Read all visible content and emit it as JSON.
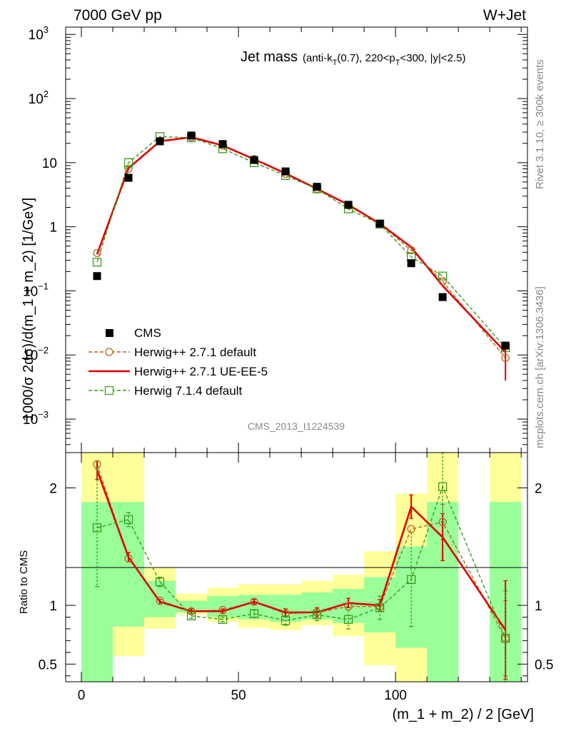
{
  "header": {
    "left": "7000 GeV pp",
    "right": "W+Jet"
  },
  "side_labels": {
    "rivet": "Rivet 3.1.10, ≥ 300k events",
    "mcplots": "mcplots.cern.ch [arXiv:1306.3436]"
  },
  "chart_data": {
    "type": "line",
    "title_main": "Jet mass",
    "title_sub": "(anti-k_T(0.7), 220<p_T<300, |y|<2.5)",
    "watermark": "CMS_2013_I1224539",
    "xlabel": "(m_1 + m_2) / 2 [GeV]",
    "ylabel": "1000/σ 2dσ)/d(m_1 + m_2) [1/GeV]",
    "ratio_ylabel": "Ratio to CMS",
    "xlim": [
      -5,
      142
    ],
    "ylim_log": [
      0.0003,
      1300
    ],
    "ratio_ylim": [
      0.35,
      2.3
    ],
    "x_ticks": [
      0,
      50,
      100
    ],
    "y_ticks": [
      "10^-3",
      "10^-2",
      "10^-1",
      "1",
      "10",
      "10^2",
      "10^3"
    ],
    "ratio_ticks": [
      "0.5",
      "1",
      "2"
    ],
    "bins": [
      [
        0,
        10
      ],
      [
        10,
        20
      ],
      [
        20,
        30
      ],
      [
        30,
        40
      ],
      [
        40,
        50
      ],
      [
        50,
        60
      ],
      [
        60,
        70
      ],
      [
        70,
        80
      ],
      [
        80,
        90
      ],
      [
        90,
        100
      ],
      [
        100,
        110
      ],
      [
        110,
        120
      ],
      [
        130,
        140
      ]
    ],
    "x": [
      5,
      15,
      25,
      35,
      45,
      55,
      65,
      75,
      85,
      95,
      105,
      115,
      135
    ],
    "data": {
      "name": "CMS",
      "values": [
        0.17,
        5.8,
        21.5,
        26.5,
        19.5,
        11.0,
        7.3,
        4.2,
        2.2,
        1.12,
        0.27,
        0.08,
        0.014
      ]
    },
    "band_yellow": [
      [
        0.35,
        2.3
      ],
      [
        0.57,
        2.3
      ],
      [
        0.8,
        1.32
      ],
      [
        0.92,
        1.1
      ],
      [
        0.86,
        1.15
      ],
      [
        0.81,
        1.18
      ],
      [
        0.79,
        1.18
      ],
      [
        0.83,
        1.21
      ],
      [
        0.74,
        1.26
      ],
      [
        0.49,
        1.46
      ],
      [
        0.35,
        1.95
      ],
      [
        0.35,
        2.3
      ],
      [
        0.35,
        2.3
      ]
    ],
    "band_green": [
      [
        0.35,
        1.88
      ],
      [
        0.82,
        1.88
      ],
      [
        0.9,
        1.21
      ],
      [
        0.94,
        1.04
      ],
      [
        0.9,
        1.08
      ],
      [
        0.88,
        1.09
      ],
      [
        0.86,
        1.09
      ],
      [
        0.88,
        1.11
      ],
      [
        0.85,
        1.14
      ],
      [
        0.77,
        1.24
      ],
      [
        0.64,
        1.5
      ],
      [
        0.35,
        1.88
      ],
      [
        0.35,
        1.88
      ]
    ],
    "series": [
      {
        "name": "Herwig++ 2.7.1 default",
        "color": "#b5651d",
        "values": [
          0.39,
          8.0,
          22.0,
          25.0,
          18.5,
          11.3,
          6.7,
          3.9,
          2.15,
          1.11,
          0.43,
          0.14,
          0.009
        ],
        "ratio": [
          2.2,
          1.4,
          1.04,
          0.95,
          0.96,
          1.03,
          0.93,
          0.94,
          0.99,
          0.99,
          1.65,
          1.71,
          0.72
        ],
        "ratio_err": [
          0,
          0,
          0,
          0,
          0,
          0,
          0,
          0,
          0,
          0,
          0,
          0.15,
          0.32
        ]
      },
      {
        "name": "Herwig++ 2.7.1 UE-EE-5",
        "color": "#e00000",
        "values": [
          0.37,
          8.2,
          21.5,
          25.0,
          18.5,
          11.3,
          6.8,
          3.9,
          2.2,
          1.12,
          0.48,
          0.12,
          0.011
        ],
        "ratio": [
          2.15,
          1.41,
          1.03,
          0.95,
          0.95,
          1.03,
          0.94,
          0.94,
          1.02,
          1.0,
          1.84,
          1.58,
          0.79
        ],
        "ratio_err": [
          0.08,
          0.04,
          0.02,
          0.02,
          0.02,
          0.02,
          0.03,
          0.04,
          0.04,
          0.05,
          0.1,
          0.2,
          0.42
        ]
      },
      {
        "name": "Herwig 7.1.4 default",
        "color": "#3a9a1a",
        "values": [
          0.28,
          10.0,
          25.5,
          24.5,
          16.5,
          10.0,
          6.3,
          3.9,
          1.9,
          1.1,
          0.34,
          0.17,
          0.013
        ],
        "ratio": [
          1.66,
          1.73,
          1.2,
          0.91,
          0.88,
          0.93,
          0.87,
          0.92,
          0.88,
          0.98,
          1.22,
          2.01,
          0.72
        ],
        "ratio_err": [
          0.5,
          0.06,
          0.04,
          0.02,
          0.02,
          0.03,
          0.04,
          0.05,
          0.08,
          0.1,
          0.4,
          0.3,
          0.4
        ]
      }
    ],
    "legend_position": "lower-left"
  }
}
